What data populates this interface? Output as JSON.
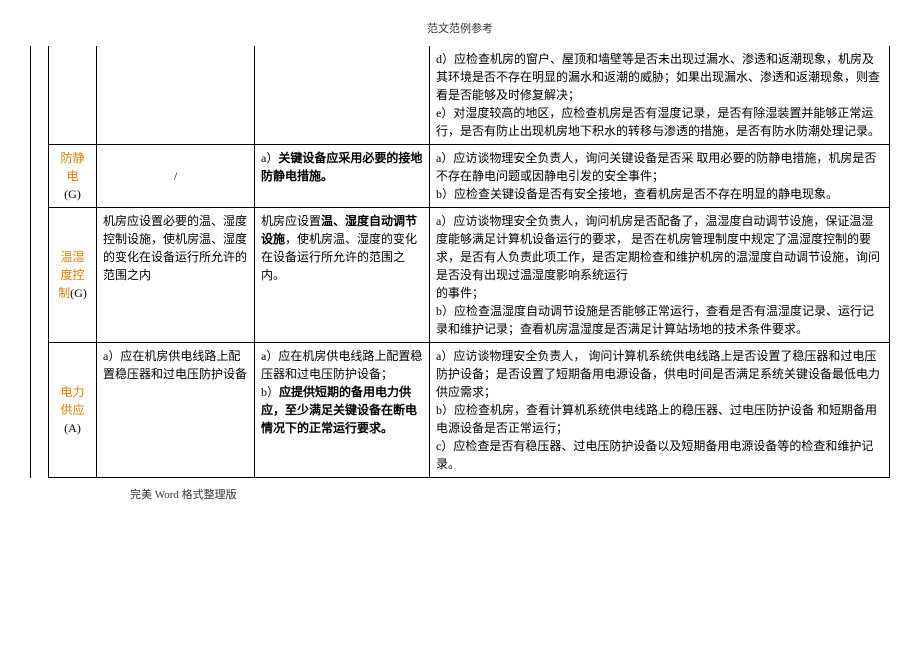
{
  "header": "范文范例参考",
  "footer": "完美 Word 格式整理版",
  "rows": [
    {
      "label": "",
      "label_code": "",
      "req1": "",
      "req2": "",
      "detail": "d）应检查机房的窗户、屋顶和墙壁等是否未出现过漏水、渗透和返潮现象，机房及其环境是否不存在明显的漏水和返潮的威胁；如果出现漏水、渗透和返潮现象，则查看是否能够及时修复解决；\ne）对湿度较高的地区，应检查机房是否有湿度记录，是否有除湿装置并能够正常运行，是否有防止出现机房地下积水的转移与渗透的措施，是否有防水防潮处理记录。"
    },
    {
      "label": "防静电",
      "label_code": "(G)",
      "req1": "/",
      "req2_prefix": "a）",
      "req2_bold": "关键设备应采用必要的接地防静电措施。",
      "detail": "a）应访谈物理安全负责人，询问关键设备是否采 取用必要的防静电措施，机房是否不存在静电问题或因静电引发的安全事件；\nb）应检查关键设备是否有安全接地，查看机房是否不存在明显的静电现象。"
    },
    {
      "label": "温湿度控制",
      "label_code": "(G)",
      "req1": "机房应设置必要的温、湿度控制设施，使机房温、湿度的变化在设备运行所允许的范围之内",
      "req2_prefix": "机房应设置",
      "req2_bold": "温、湿度自动调节设施",
      "req2_suffix": "，使机房温、湿度的变化在设备运行所允许的范围之内。",
      "detail": "a）应访谈物理安全负责人，询问机房是否配备了，温湿度自动调节设施，保证温湿度能够满足计算机设备运行的要求， 是否在机房管理制度中规定了温湿度控制的要求，是否有人负责此项工作，是否定期检查和维护机房的温湿度自动调节设施，询问是否没有出现过温湿度影响系统运行\n的事件；\nb）应检查温湿度自动调节设施是否能够正常运行，查看是否有温湿度记录、运行记录和维护记录；查看机房温湿度是否满足计算站场地的技术条件要求。"
    },
    {
      "label": "电力供应",
      "label_code": "(A)",
      "req1": "a）应在机房供电线路上配置稳压器和过电压防护设备",
      "req2_a": "a）应在机房供电线路上配置稳压器和过电压防护设备；",
      "req2_b_prefix": "b）",
      "req2_b_bold": "应提供短期的备用电力供应，至少满足关键设备在断电情况下的正常运行要求。",
      "detail": "a）应访谈物理安全负责人， 询问计算机系统供电线路上是否设置了稳压器和过电压防护设备；是否设置了短期备用电源设备，供电时间是否满足系统关键设备最低电力供应需求；\nb）应检查机房，查看计算机系统供电线路上的稳压器、过电压防护设备 和短期备用电源设备是否正常运行；\nc）应检查是否有稳压器、过电压防护设备以及短期备用电源设备等的检查和维护记录。"
    }
  ]
}
